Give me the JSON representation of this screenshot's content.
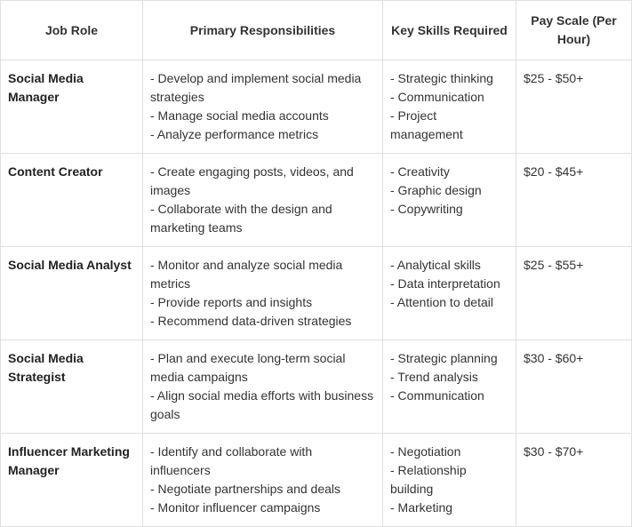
{
  "table": {
    "columns": [
      "Job Role",
      "Primary Responsibilities",
      "Key Skills Required",
      "Pay Scale (Per Hour)"
    ],
    "rows": [
      {
        "role": "Social Media Manager",
        "responsibilities": [
          "- Develop and implement social media strategies",
          "- Manage social media accounts",
          "- Analyze performance metrics"
        ],
        "skills": [
          "- Strategic thinking",
          "- Communication",
          "- Project management"
        ],
        "pay": "$25 - $50+"
      },
      {
        "role": "Content Creator",
        "responsibilities": [
          "- Create engaging posts, videos, and images",
          "- Collaborate with the design and marketing teams"
        ],
        "skills": [
          "- Creativity",
          "- Graphic design",
          "- Copywriting"
        ],
        "pay": "$20 - $45+"
      },
      {
        "role": "Social Media Analyst",
        "responsibilities": [
          "- Monitor and analyze social media metrics",
          "- Provide reports and insights",
          "- Recommend data-driven strategies"
        ],
        "skills": [
          "- Analytical skills",
          "- Data interpretation",
          "- Attention to detail"
        ],
        "pay": "$25 - $55+"
      },
      {
        "role": "Social Media Strategist",
        "responsibilities": [
          "- Plan and execute long-term social media campaigns",
          "- Align social media efforts with business goals"
        ],
        "skills": [
          "- Strategic planning",
          "- Trend analysis",
          "- Communication"
        ],
        "pay": "$30 - $60+"
      },
      {
        "role": "Influencer Marketing Manager",
        "responsibilities": [
          "- Identify and collaborate with influencers",
          "- Negotiate partnerships and deals",
          "- Monitor influencer campaigns"
        ],
        "skills": [
          "- Negotiation",
          "- Relationship building",
          "- Marketing"
        ],
        "pay": "$30 - $70+"
      }
    ]
  }
}
